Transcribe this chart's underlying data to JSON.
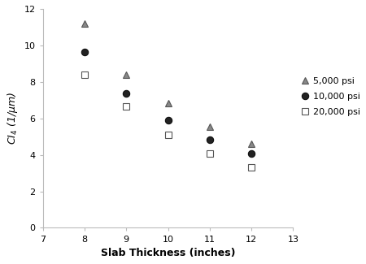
{
  "title": "",
  "xlabel": "Slab Thickness (inches)",
  "ylabel": "CI₄ (1/μm)",
  "xlim": [
    7,
    13
  ],
  "ylim": [
    0,
    12
  ],
  "xticks": [
    7,
    8,
    9,
    10,
    11,
    12,
    13
  ],
  "yticks": [
    0,
    2,
    4,
    6,
    8,
    10,
    12
  ],
  "series": [
    {
      "label": "5,000 psi",
      "x": [
        8,
        9,
        10,
        11,
        12
      ],
      "y": [
        11.18,
        8.38,
        6.84,
        5.56,
        4.62
      ],
      "marker": "^",
      "color": "#888888",
      "markerfacecolor": "#888888",
      "markeredgecolor": "#555555",
      "markersize": 6
    },
    {
      "label": "10,000 psi",
      "x": [
        8,
        9,
        10,
        11,
        12
      ],
      "y": [
        9.65,
        7.37,
        5.91,
        4.84,
        4.06
      ],
      "marker": "o",
      "color": "#222222",
      "markerfacecolor": "#222222",
      "markeredgecolor": "#111111",
      "markersize": 6
    },
    {
      "label": "20,000 psi",
      "x": [
        8,
        9,
        10,
        11,
        12
      ],
      "y": [
        8.38,
        6.65,
        5.08,
        4.06,
        3.3
      ],
      "marker": "s",
      "color": "#555555",
      "markerfacecolor": "none",
      "markeredgecolor": "#555555",
      "markersize": 6
    }
  ],
  "background_color": "#ffffff"
}
